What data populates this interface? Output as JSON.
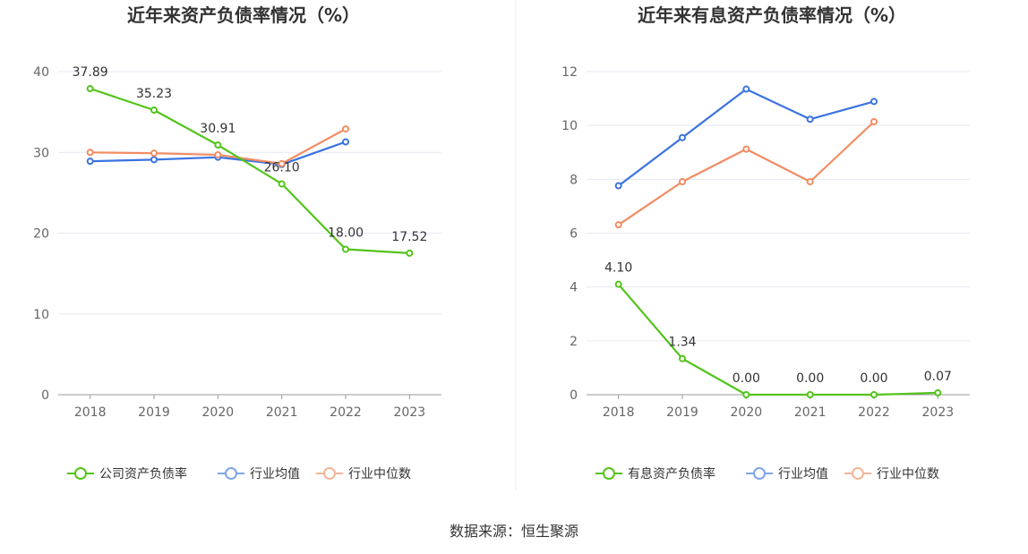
{
  "chart_data": [
    {
      "type": "line",
      "title": "近年来资产负债率情况（%）",
      "categories": [
        "2018",
        "2019",
        "2020",
        "2021",
        "2022",
        "2023"
      ],
      "ylim": [
        0,
        40
      ],
      "yticks": [
        0,
        10,
        20,
        30,
        40
      ],
      "grid": true,
      "legend_position": "bottom",
      "series": [
        {
          "name": "公司资产负债率",
          "color": "#52c41a",
          "values": [
            37.89,
            35.23,
            30.91,
            26.1,
            18.0,
            17.52
          ],
          "labels": [
            "37.89",
            "35.23",
            "30.91",
            "26.10",
            "18.00",
            "17.52"
          ]
        },
        {
          "name": "行业均值",
          "color": "#3a73e0",
          "values": [
            28.9,
            29.1,
            29.4,
            28.5,
            31.3,
            null
          ]
        },
        {
          "name": "行业中位数",
          "color": "#f28c62",
          "values": [
            30.0,
            29.9,
            29.7,
            28.6,
            32.9,
            null
          ]
        }
      ]
    },
    {
      "type": "line",
      "title": "近年来有息资产负债率情况（%）",
      "categories": [
        "2018",
        "2019",
        "2020",
        "2021",
        "2022",
        "2023"
      ],
      "ylim": [
        0,
        12
      ],
      "yticks": [
        0,
        2,
        4,
        6,
        8,
        10,
        12
      ],
      "grid": true,
      "legend_position": "bottom",
      "series": [
        {
          "name": "有息资产负债率",
          "color": "#52c41a",
          "values": [
            4.1,
            1.34,
            0.0,
            0.0,
            0.0,
            0.07
          ],
          "labels": [
            "4.10",
            "1.34",
            "0.00",
            "0.00",
            "0.00",
            "0.07"
          ]
        },
        {
          "name": "行业均值",
          "color": "#3a73e0",
          "values": [
            7.76,
            9.55,
            11.35,
            10.23,
            10.89,
            null
          ]
        },
        {
          "name": "行业中位数",
          "color": "#f28c62",
          "values": [
            6.31,
            7.91,
            9.12,
            7.91,
            10.14,
            null
          ]
        }
      ]
    }
  ],
  "footer": {
    "source": "数据来源：恒生聚源"
  }
}
